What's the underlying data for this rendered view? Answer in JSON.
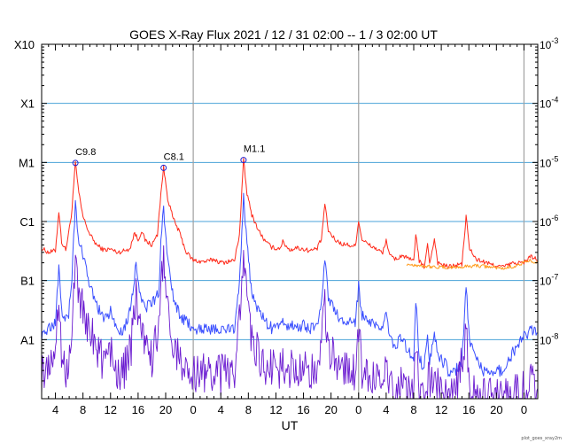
{
  "chart_data": {
    "type": "line",
    "title": "GOES X-Ray Flux   2021 / 12 / 31   02:00 --  1 /  3   02:00   UT",
    "xlabel": "UT",
    "ylabel_left_ticks": [
      "X10",
      "X1",
      "M1",
      "C1",
      "B1",
      "A1"
    ],
    "ylabel_right_ticks": [
      {
        "base": "10",
        "exp": "-3"
      },
      {
        "base": "10",
        "exp": "-4"
      },
      {
        "base": "10",
        "exp": "-5"
      },
      {
        "base": "10",
        "exp": "-6"
      },
      {
        "base": "10",
        "exp": "-7"
      },
      {
        "base": "10",
        "exp": "-8"
      }
    ],
    "yscale": "log",
    "ylim": [
      1e-09,
      0.001
    ],
    "xlim_hours": [
      0,
      72
    ],
    "x_tick_labels": [
      "4",
      "8",
      "12",
      "16",
      "20",
      "0",
      "4",
      "8",
      "12",
      "16",
      "20",
      "0",
      "4",
      "8",
      "12",
      "16",
      "20",
      "0"
    ],
    "x_tick_hours": [
      2,
      6,
      10,
      14,
      18,
      22,
      26,
      30,
      34,
      38,
      42,
      46,
      50,
      54,
      58,
      62,
      66,
      70
    ],
    "day_boundaries_hours": [
      22,
      46,
      70
    ],
    "flare_labels": [
      {
        "label": "C9.8",
        "hour": 4.9,
        "flux": 9.8e-06
      },
      {
        "label": "C8.1",
        "hour": 17.7,
        "flux": 8.1e-06
      },
      {
        "label": "M1.1",
        "hour": 29.3,
        "flux": 1.1e-05
      }
    ],
    "series": [
      {
        "color": "#ff2a1a",
        "points": [
          [
            0,
            3.5e-07
          ],
          [
            1,
            3e-07
          ],
          [
            2,
            3.2e-07
          ],
          [
            2.5,
            1.5e-06
          ],
          [
            2.9,
            4.5e-07
          ],
          [
            3.5,
            3.3e-07
          ],
          [
            4.3,
            1.2e-06
          ],
          [
            4.9,
            9.8e-06
          ],
          [
            5.4,
            3e-06
          ],
          [
            6,
            1.2e-06
          ],
          [
            7,
            6e-07
          ],
          [
            8,
            4e-07
          ],
          [
            9,
            3.3e-07
          ],
          [
            10,
            3.4e-07
          ],
          [
            11,
            3e-07
          ],
          [
            12,
            3.2e-07
          ],
          [
            12.8,
            3.5e-07
          ],
          [
            13.5,
            6.5e-07
          ],
          [
            14,
            4.8e-07
          ],
          [
            14.5,
            7e-07
          ],
          [
            15,
            4.8e-07
          ],
          [
            16,
            4e-07
          ],
          [
            16.8,
            6e-07
          ],
          [
            17.3,
            3e-06
          ],
          [
            17.7,
            8.1e-06
          ],
          [
            18.3,
            2.5e-06
          ],
          [
            19,
            1.2e-06
          ],
          [
            20,
            6.5e-07
          ],
          [
            21,
            3e-07
          ],
          [
            22,
            2.2e-07
          ],
          [
            23,
            2.1e-07
          ],
          [
            24,
            2.1e-07
          ],
          [
            25,
            2.3e-07
          ],
          [
            26,
            2e-07
          ],
          [
            27,
            2.1e-07
          ],
          [
            28,
            2.2e-07
          ],
          [
            28.7,
            6e-07
          ],
          [
            29.3,
            1.1e-05
          ],
          [
            29.8,
            3e-06
          ],
          [
            30.5,
            1.3e-06
          ],
          [
            31.5,
            7e-07
          ],
          [
            32.5,
            4.5e-07
          ],
          [
            33.5,
            3.6e-07
          ],
          [
            34.5,
            3.5e-07
          ],
          [
            35,
            4.5e-07
          ],
          [
            36,
            3.3e-07
          ],
          [
            37,
            3.6e-07
          ],
          [
            38,
            3.4e-07
          ],
          [
            39,
            3.2e-07
          ],
          [
            40,
            3.5e-07
          ],
          [
            40.6,
            5e-07
          ],
          [
            41.1,
            2e-06
          ],
          [
            41.6,
            7e-07
          ],
          [
            42.5,
            5e-07
          ],
          [
            43.5,
            4.2e-07
          ],
          [
            44.5,
            4e-07
          ],
          [
            45.5,
            3.8e-07
          ],
          [
            46,
            1e-06
          ],
          [
            46.5,
            5e-07
          ],
          [
            47.5,
            4e-07
          ],
          [
            48.5,
            3.5e-07
          ],
          [
            49.5,
            2.9e-07
          ],
          [
            50,
            5e-07
          ],
          [
            50.5,
            2.6e-07
          ],
          [
            51.5,
            2.3e-07
          ],
          [
            52.3,
            2.7e-07
          ],
          [
            53,
            2.4e-07
          ],
          [
            54,
            2.1e-07
          ],
          [
            54.3,
            6.5e-07
          ],
          [
            54.8,
            2.1e-07
          ],
          [
            55.5,
            1.7e-07
          ],
          [
            56,
            4e-07
          ],
          [
            56.3,
            2e-07
          ],
          [
            57,
            5e-07
          ],
          [
            57.5,
            2e-07
          ],
          [
            58.5,
            1.8e-07
          ],
          [
            59,
            1.7e-07
          ],
          [
            60,
            1.8e-07
          ],
          [
            61,
            1.9e-07
          ],
          [
            61.6,
            1.2e-06
          ],
          [
            62.1,
            3.5e-07
          ],
          [
            63,
            2.3e-07
          ],
          [
            64,
            2.1e-07
          ],
          [
            65,
            1.9e-07
          ],
          [
            66,
            1.8e-07
          ],
          [
            67,
            1.7e-07
          ],
          [
            68,
            1.9e-07
          ],
          [
            69,
            2e-07
          ],
          [
            70,
            2e-07
          ],
          [
            71,
            2.6e-07
          ],
          [
            72,
            2.2e-07
          ]
        ]
      },
      {
        "color": "#ff9a1a",
        "points": [
          [
            53,
            1.9e-07
          ],
          [
            55,
            1.8e-07
          ],
          [
            57,
            1.7e-07
          ],
          [
            59,
            1.65e-07
          ],
          [
            61,
            1.7e-07
          ],
          [
            63,
            1.8e-07
          ],
          [
            65,
            1.7e-07
          ],
          [
            67,
            1.6e-07
          ],
          [
            69,
            1.8e-07
          ],
          [
            71,
            2.2e-07
          ],
          [
            72,
            2e-07
          ]
        ]
      },
      {
        "color": "#3a4fff",
        "points": [
          [
            0,
            1.2e-08
          ],
          [
            1,
            1.5e-08
          ],
          [
            2,
            2e-08
          ],
          [
            2.5,
            1.5e-07
          ],
          [
            3,
            3e-08
          ],
          [
            3.8,
            2e-08
          ],
          [
            4.4,
            1.2e-07
          ],
          [
            4.9,
            2.2e-06
          ],
          [
            5.3,
            5e-07
          ],
          [
            6,
            2.5e-07
          ],
          [
            7,
            8e-08
          ],
          [
            8,
            4e-08
          ],
          [
            9,
            2e-08
          ],
          [
            10,
            3e-08
          ],
          [
            11,
            1.5e-08
          ],
          [
            12,
            1.5e-08
          ],
          [
            13,
            4e-08
          ],
          [
            13.7,
            2e-07
          ],
          [
            14.3,
            6e-08
          ],
          [
            15,
            3.5e-08
          ],
          [
            16,
            4e-08
          ],
          [
            17,
            6e-08
          ],
          [
            17.3,
            5e-07
          ],
          [
            17.7,
            1.8e-06
          ],
          [
            18.3,
            2e-07
          ],
          [
            19,
            6e-08
          ],
          [
            20,
            2.5e-08
          ],
          [
            21,
            2e-08
          ],
          [
            22,
            1.5e-08
          ],
          [
            23,
            1.6e-08
          ],
          [
            24,
            1.5e-08
          ],
          [
            25,
            1.5e-08
          ],
          [
            26,
            1.4e-08
          ],
          [
            27,
            1.5e-08
          ],
          [
            28,
            1.6e-08
          ],
          [
            28.7,
            1e-07
          ],
          [
            29.3,
            2.5e-06
          ],
          [
            29.8,
            4e-07
          ],
          [
            30.5,
            6e-08
          ],
          [
            31.5,
            3e-08
          ],
          [
            32.5,
            2e-08
          ],
          [
            33.5,
            1.5e-08
          ],
          [
            34.5,
            1.6e-08
          ],
          [
            35,
            2e-08
          ],
          [
            36,
            1.7e-08
          ],
          [
            37,
            1.6e-08
          ],
          [
            38,
            1.8e-08
          ],
          [
            39,
            1.5e-08
          ],
          [
            40,
            2e-08
          ],
          [
            40.6,
            4e-08
          ],
          [
            41.1,
            2.5e-07
          ],
          [
            41.6,
            5e-08
          ],
          [
            42.5,
            3e-08
          ],
          [
            43.5,
            2e-08
          ],
          [
            44.5,
            2e-08
          ],
          [
            45.5,
            1.8e-08
          ],
          [
            46,
            8e-08
          ],
          [
            46.5,
            2.5e-08
          ],
          [
            47.5,
            2e-08
          ],
          [
            48.5,
            1.6e-08
          ],
          [
            49.5,
            1.5e-08
          ],
          [
            50,
            3e-08
          ],
          [
            50.5,
            1e-08
          ],
          [
            51.5,
            8e-09
          ],
          [
            52.3,
            1.2e-08
          ],
          [
            53,
            7e-09
          ],
          [
            54,
            5e-09
          ],
          [
            54.3,
            5e-08
          ],
          [
            54.8,
            5e-09
          ],
          [
            55.5,
            3e-09
          ],
          [
            56,
            1.5e-08
          ],
          [
            56.3,
            4e-09
          ],
          [
            57,
            1.5e-08
          ],
          [
            57.5,
            5e-09
          ],
          [
            58.5,
            4e-09
          ],
          [
            59,
            3e-09
          ],
          [
            60,
            3e-09
          ],
          [
            61,
            4e-09
          ],
          [
            61.6,
            8e-08
          ],
          [
            62.1,
            1e-08
          ],
          [
            63,
            5e-09
          ],
          [
            64,
            3e-09
          ],
          [
            65,
            3e-09
          ],
          [
            66,
            3e-09
          ],
          [
            67,
            3e-09
          ],
          [
            68,
            5e-09
          ],
          [
            69,
            8e-09
          ],
          [
            70,
            1.1e-08
          ],
          [
            71,
            1.5e-08
          ],
          [
            72,
            1.3e-08
          ]
        ]
      },
      {
        "color": "#6a1ad0",
        "points": [
          [
            0,
            2.5e-09
          ],
          [
            1,
            4e-09
          ],
          [
            2,
            6e-09
          ],
          [
            2.5,
            5e-08
          ],
          [
            3,
            4e-09
          ],
          [
            3.8,
            3e-09
          ],
          [
            4.4,
            2e-08
          ],
          [
            4.9,
            3e-07
          ],
          [
            5.3,
            6e-08
          ],
          [
            6,
            3e-08
          ],
          [
            7,
            1.5e-08
          ],
          [
            8,
            8e-09
          ],
          [
            9,
            4e-09
          ],
          [
            10,
            6e-09
          ],
          [
            11,
            3e-09
          ],
          [
            12,
            3e-09
          ],
          [
            13,
            8e-09
          ],
          [
            13.7,
            6e-08
          ],
          [
            14.3,
            1.5e-08
          ],
          [
            15,
            6e-09
          ],
          [
            16,
            5e-09
          ],
          [
            17,
            1.2e-08
          ],
          [
            17.3,
            1e-07
          ],
          [
            17.7,
            3e-07
          ],
          [
            18.3,
            3e-08
          ],
          [
            19,
            1e-08
          ],
          [
            20,
            4e-09
          ],
          [
            21,
            3e-09
          ],
          [
            22,
            2.5e-09
          ],
          [
            23,
            3e-09
          ],
          [
            24,
            2.5e-09
          ],
          [
            25,
            3e-09
          ],
          [
            26,
            2.5e-09
          ],
          [
            27,
            3e-09
          ],
          [
            28,
            3e-09
          ],
          [
            28.7,
            2e-08
          ],
          [
            29.3,
            4e-07
          ],
          [
            29.8,
            5e-08
          ],
          [
            30.5,
            1e-08
          ],
          [
            31.5,
            5e-09
          ],
          [
            32.5,
            3.5e-09
          ],
          [
            33.5,
            3e-09
          ],
          [
            34.5,
            3e-09
          ],
          [
            35,
            4e-09
          ],
          [
            36,
            3e-09
          ],
          [
            37,
            3e-09
          ],
          [
            38,
            3.5e-09
          ],
          [
            39,
            2.5e-09
          ],
          [
            40,
            3.5e-09
          ],
          [
            40.6,
            7e-09
          ],
          [
            41.1,
            4e-08
          ],
          [
            41.6,
            8e-09
          ],
          [
            42.5,
            5e-09
          ],
          [
            43.5,
            3.5e-09
          ],
          [
            44.5,
            3e-09
          ],
          [
            45.5,
            2.5e-09
          ],
          [
            46,
            1.5e-08
          ],
          [
            46.5,
            3e-09
          ],
          [
            47.5,
            2.5e-09
          ],
          [
            48.5,
            2e-09
          ],
          [
            49.5,
            2e-09
          ],
          [
            50,
            4e-09
          ],
          [
            50.5,
            1.5e-09
          ],
          [
            51.5,
            1.2e-09
          ],
          [
            52.3,
            2e-09
          ],
          [
            53,
            1.2e-09
          ],
          [
            54,
            1.1e-09
          ],
          [
            54.3,
            8e-09
          ],
          [
            54.8,
            1.1e-09
          ],
          [
            55.5,
            1e-09
          ],
          [
            56,
            2e-09
          ],
          [
            57,
            2e-09
          ],
          [
            58.5,
            1e-09
          ],
          [
            60,
            1e-09
          ],
          [
            61.6,
            1.2e-08
          ],
          [
            62.1,
            1.5e-09
          ],
          [
            63,
            1e-09
          ],
          [
            66,
            1e-09
          ],
          [
            68,
            1e-09
          ],
          [
            69,
            1.2e-09
          ],
          [
            70,
            1.5e-09
          ],
          [
            71,
            1.8e-09
          ],
          [
            72,
            1.5e-09
          ]
        ]
      }
    ]
  },
  "footer": {
    "credit": "plot_goes_xray2m"
  }
}
